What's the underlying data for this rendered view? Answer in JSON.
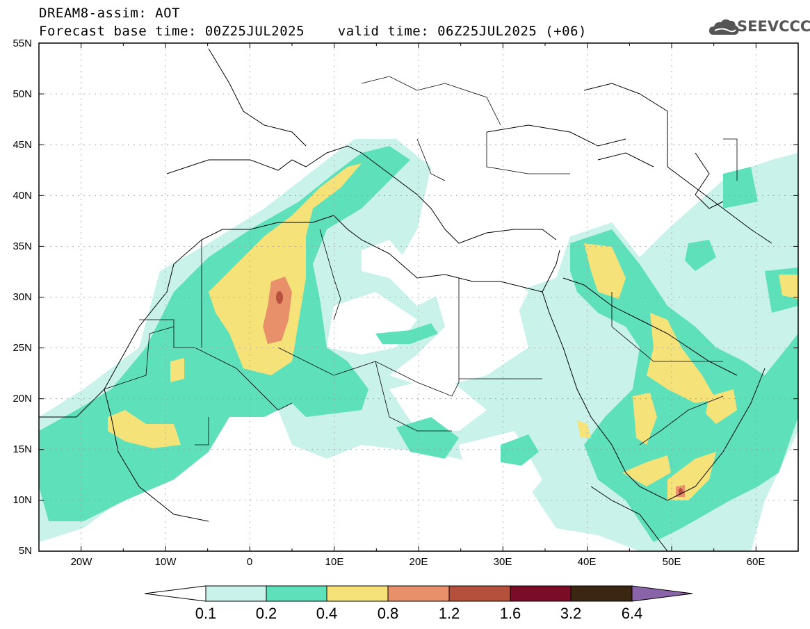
{
  "header": {
    "title": "DREAM8-assim: AOT",
    "subtitle": "Forecast base time: 00Z25JUL2025    valid time: 06Z25JUL2025 (+06)"
  },
  "logo": {
    "text": "SEEVCCC",
    "icon": "cloud-logo-icon"
  },
  "map": {
    "lat_labels": [
      "55N",
      "50N",
      "45N",
      "40N",
      "35N",
      "30N",
      "25N",
      "20N",
      "15N",
      "10N",
      "5N"
    ],
    "lon_labels": [
      "20W",
      "10W",
      "0",
      "10E",
      "20E",
      "30E",
      "40E",
      "50E",
      "60E"
    ],
    "lat_range": [
      5,
      55
    ],
    "lon_range": [
      -25,
      65
    ],
    "grid": true
  },
  "colorbar": {
    "labels": [
      "0.1",
      "0.2",
      "0.4",
      "0.8",
      "1.2",
      "1.6",
      "3.2",
      "6.4"
    ],
    "colors": [
      "#ffffff",
      "#c8f2ea",
      "#5ee0bb",
      "#f5e37a",
      "#e8906a",
      "#b5503d",
      "#7a0c28",
      "#3b2612",
      "#8a64a8"
    ]
  }
}
